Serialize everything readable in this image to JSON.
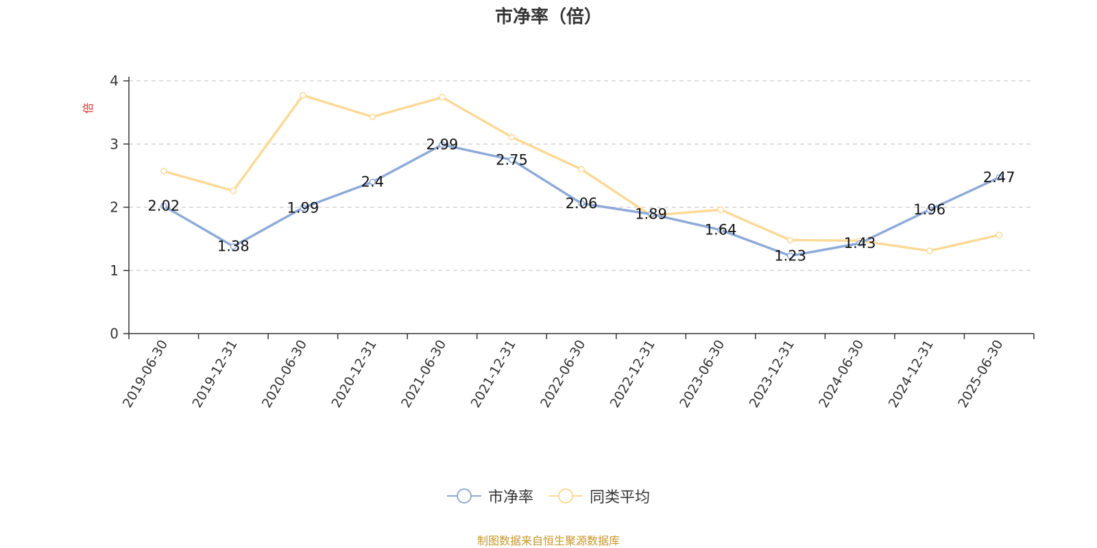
{
  "chart_data": {
    "type": "line",
    "title": "市净率（倍）",
    "ylabel": "倍",
    "xlabel": "",
    "ylim": [
      0,
      4
    ],
    "yticks": [
      0,
      1,
      2,
      3,
      4
    ],
    "grid": true,
    "legend_position": "bottom",
    "categories": [
      "2019-06-30",
      "2019-12-31",
      "2020-06-30",
      "2020-12-31",
      "2021-06-30",
      "2021-12-31",
      "2022-06-30",
      "2022-12-31",
      "2023-06-30",
      "2023-12-31",
      "2024-06-30",
      "2024-12-31",
      "2025-06-30"
    ],
    "series": [
      {
        "name": "市净率",
        "color": "#8eaad8",
        "values": [
          2.02,
          1.38,
          1.99,
          2.4,
          2.99,
          2.75,
          2.06,
          1.89,
          1.64,
          1.23,
          1.43,
          1.96,
          2.47
        ],
        "labels": [
          "2.02",
          "1.38",
          "1.99",
          "2.4",
          "2.99",
          "2.75",
          "2.06",
          "1.89",
          "1.64",
          "1.23",
          "1.43",
          "1.96",
          "2.47"
        ]
      },
      {
        "name": "同类平均",
        "color": "#fcd996",
        "values": [
          2.57,
          2.26,
          3.77,
          3.43,
          3.74,
          3.11,
          2.6,
          1.87,
          1.96,
          1.48,
          1.47,
          1.31,
          1.56
        ]
      }
    ]
  },
  "source_note": "制图数据来自恒生聚源数据库"
}
